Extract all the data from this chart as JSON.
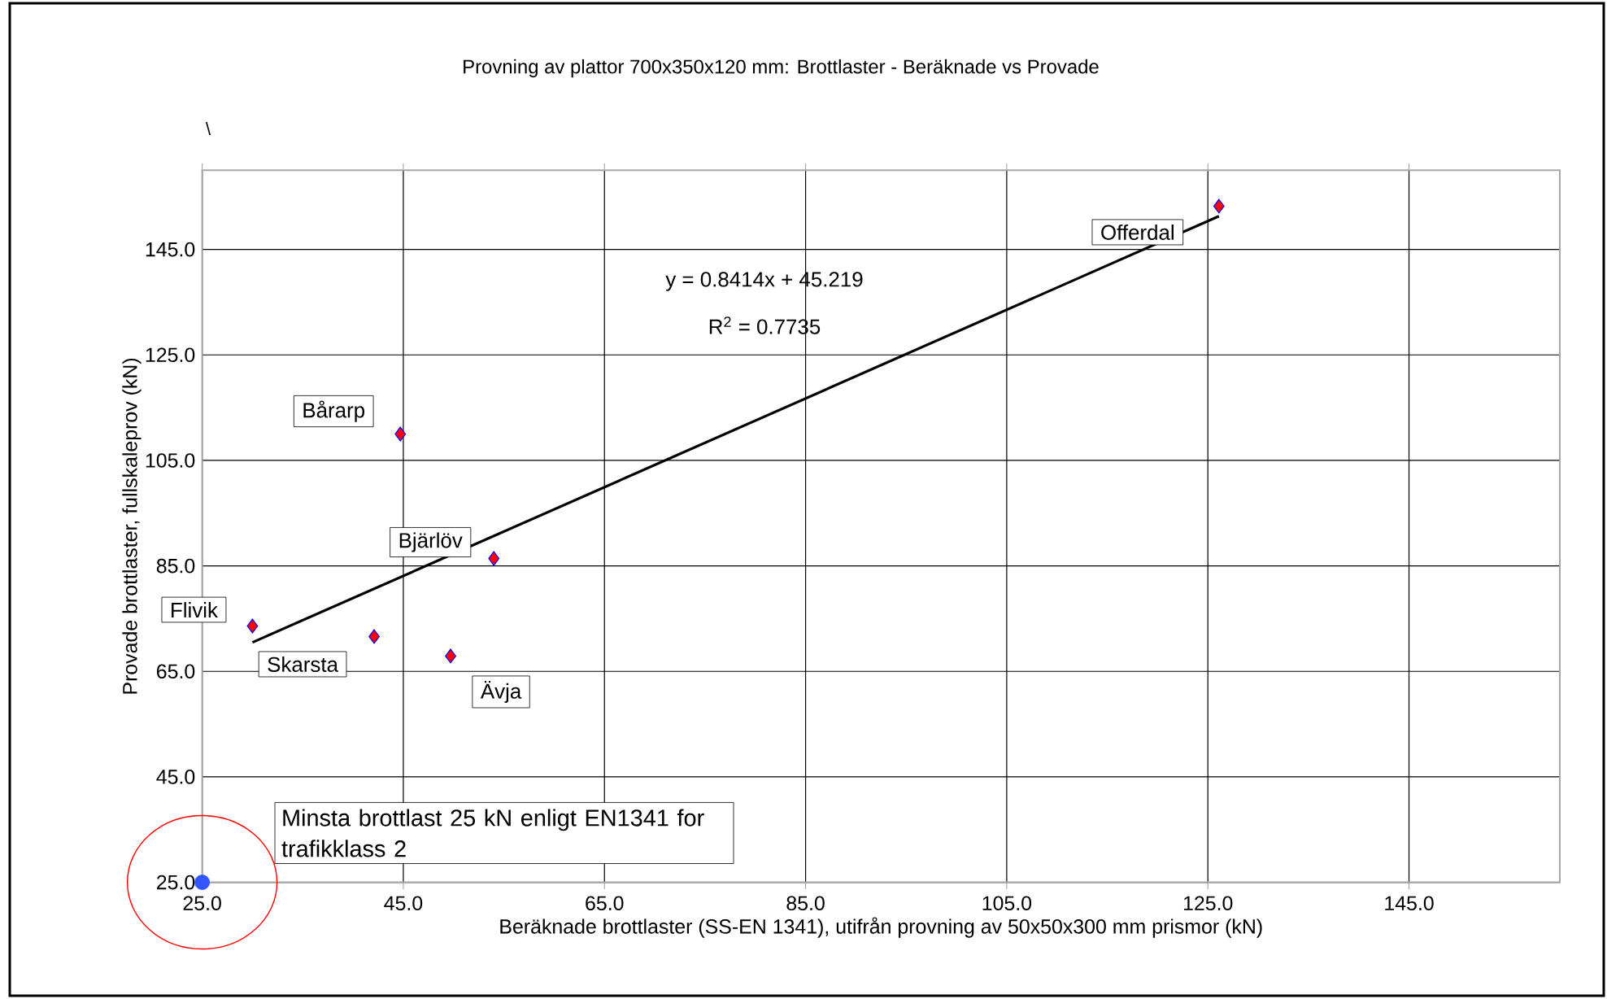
{
  "chart_data": {
    "type": "scatter",
    "title": "Provning av plattor 700x350x120 mm: Brottlaster - Beräknade vs Provade",
    "xlabel": "Beräknade brottlaster (SS-EN 1341), utifrån provning av 50x50x300 mm prismor (kN)",
    "ylabel": "Provade brottlaster, fullskaleprov (kN)",
    "xlim": [
      25,
      160
    ],
    "ylim": [
      25,
      160
    ],
    "xticks": [
      {
        "value": 25,
        "label": "25.0"
      },
      {
        "value": 45,
        "label": "45.0"
      },
      {
        "value": 65,
        "label": "65.0"
      },
      {
        "value": 85,
        "label": "85.0"
      },
      {
        "value": 105,
        "label": "105.0"
      },
      {
        "value": 125,
        "label": "125.0"
      },
      {
        "value": 145,
        "label": "145.0"
      }
    ],
    "yticks": [
      {
        "value": 25,
        "label": "25.0"
      },
      {
        "value": 45,
        "label": "45.0"
      },
      {
        "value": 65,
        "label": "65.0"
      },
      {
        "value": 85,
        "label": "85.0"
      },
      {
        "value": 105,
        "label": "105.0"
      },
      {
        "value": 125,
        "label": "125.0"
      },
      {
        "value": 145,
        "label": "145.0"
      }
    ],
    "grid": true,
    "series": [
      {
        "color": "#ff0000",
        "marker": "diamond",
        "x": [
          126.1,
          44.7,
          54.0,
          30.0,
          42.1,
          49.7
        ],
        "values": [
          153.2,
          110.0,
          86.4,
          73.6,
          71.6,
          67.9
        ]
      },
      {
        "color": "#3355ff",
        "marker": "circle",
        "x": [
          25
        ],
        "values": [
          25
        ]
      },
      {
        "type": "line",
        "color": "#000000",
        "marker": "none",
        "x": [
          30,
          126.1
        ],
        "values": [
          70.5,
          151.3
        ]
      }
    ],
    "annotations": [
      {
        "text": "Offerdal",
        "x": 126.1,
        "y": 153.2
      },
      {
        "text": "Bårarp",
        "x": 44.7,
        "y": 110.0
      },
      {
        "text": "Bjärlöv",
        "x": 54.0,
        "y": 86.4
      },
      {
        "text": "Flivik",
        "x": 30.0,
        "y": 73.6
      },
      {
        "text": "Skarsta",
        "x": 42.1,
        "y": 71.6
      },
      {
        "text": "Ävja",
        "x": 49.7,
        "y": 67.9
      },
      "y = 0.8414x + 45.219",
      "R$^{2}$ = 0.7735",
      "Minsta brottlast 25 kN enligt EN1341 for trafikklass 2",
      "\\"
    ]
  }
}
